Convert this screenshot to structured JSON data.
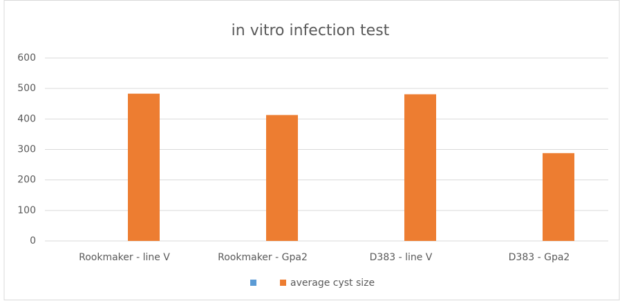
{
  "chart_data": {
    "type": "bar",
    "title": "in vitro infection test",
    "categories": [
      "Rookmaker - line V",
      "Rookmaker - Gpa2",
      "D383 - line V",
      "D383 - Gpa2"
    ],
    "series": [
      {
        "name": null,
        "color": "#5b9bd5",
        "values": [
          0,
          0,
          0,
          0
        ]
      },
      {
        "name": "average cyst size",
        "color": "#ed7d31",
        "values": [
          483,
          413,
          481,
          288
        ]
      }
    ],
    "ylim": [
      0,
      600
    ],
    "yticks": [
      0,
      100,
      200,
      300,
      400,
      500,
      600
    ],
    "grid": true,
    "legend": "bottom"
  }
}
